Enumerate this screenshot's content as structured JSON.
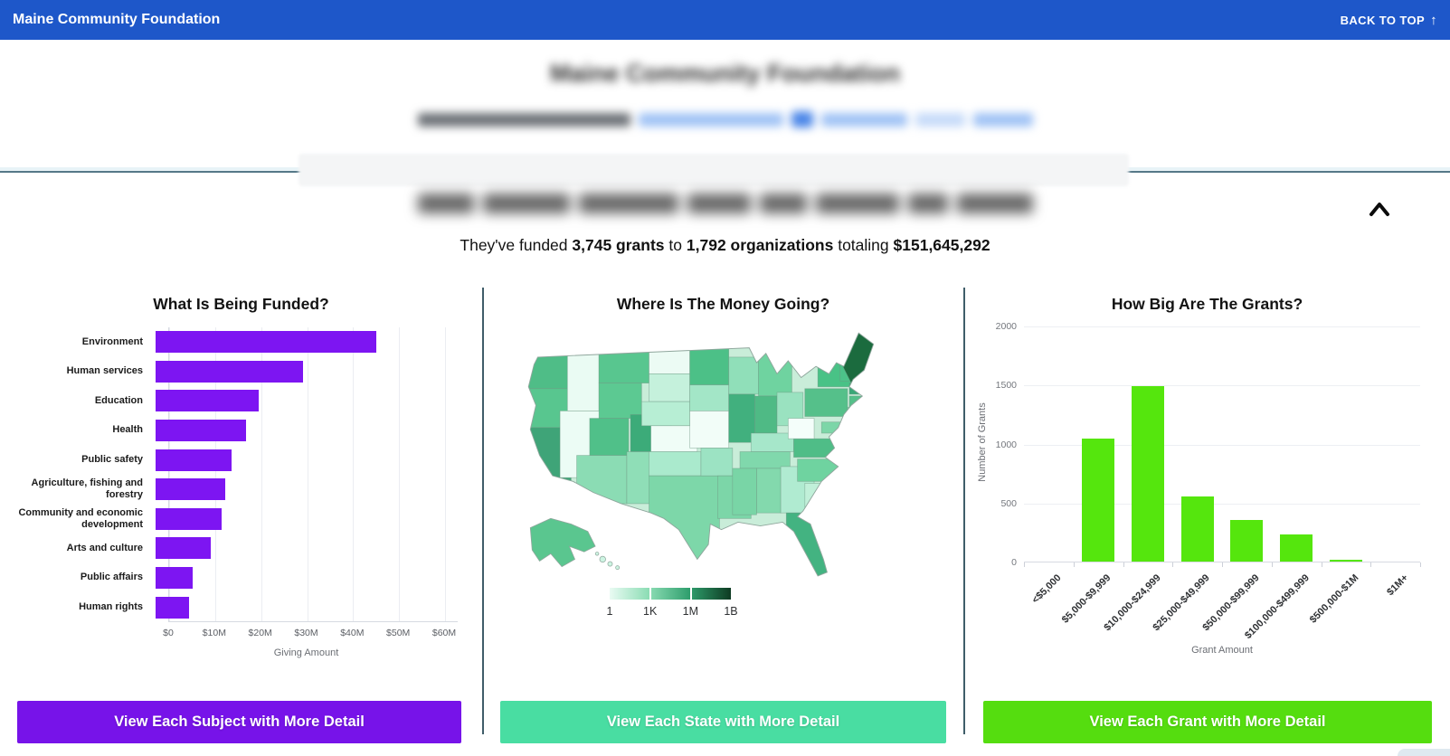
{
  "topbar": {
    "brand": "Maine Community Foundation",
    "back_to_top": "BACK TO TOP",
    "arrow_glyph": "↑"
  },
  "header": {
    "blurred_title": "Maine Community Foundation"
  },
  "overview": {
    "funded_prefix": "They've funded",
    "grants_count": "3,745 grants",
    "to_word": "to",
    "orgs_count": "1,792 organizations",
    "totaling_word": "totaling",
    "total_amount": "$151,645,292"
  },
  "panels": {
    "subjects": {
      "title": "What Is Being Funded?",
      "button_label": "View Each Subject with More Detail"
    },
    "map": {
      "title": "Where Is The Money Going?",
      "button_label": "View Each State with More Detail"
    },
    "grants": {
      "title": "How Big Are The Grants?",
      "button_label": "View Each Grant with More Detail"
    }
  },
  "colors": {
    "topbar_bg": "#1e57c9",
    "purple_bar": "#7d15f2",
    "purple_button": "#7713e9",
    "mint_button": "#49dda2",
    "lime_bar": "#55e60d",
    "lime_button": "#55dd0f",
    "divider": "#3f5d69"
  },
  "chart_data": [
    {
      "type": "bar",
      "orientation": "horizontal",
      "title": "What Is Being Funded?",
      "categories": [
        "Environment",
        "Human services",
        "Education",
        "Health",
        "Public safety",
        "Agriculture, fishing and forestry",
        "Community and economic development",
        "Arts and culture",
        "Public affairs",
        "Human rights"
      ],
      "values_millions_usd": [
        48,
        32,
        22.5,
        19.7,
        16.5,
        15.2,
        14.4,
        12,
        8,
        7.2
      ],
      "xlabel": "Giving Amount",
      "xticks": [
        "$0",
        "$10M",
        "$20M",
        "$30M",
        "$40M",
        "$50M",
        "$60M"
      ],
      "xtick_values_millions": [
        0,
        10,
        20,
        30,
        40,
        50,
        60
      ],
      "xlim_millions": [
        0,
        63
      ],
      "grid": true,
      "bar_color": "#7d15f2"
    },
    {
      "type": "heatmap",
      "subtype": "us-choropleth",
      "title": "Where Is The Money Going?",
      "region": "United States",
      "highest_state": "Maine",
      "legend": {
        "labels": [
          "1",
          "1K",
          "1M",
          "1B"
        ],
        "scale": "logarithmic",
        "gradient_colors": [
          "#e9fbf3",
          "#8adcb3",
          "#2f9e6d",
          "#0e3b22"
        ],
        "position": "bottom"
      },
      "state_colors": {
        "WA": "#4fbd87",
        "OR": "#58c68f",
        "CA": "#3fa478",
        "ID": "#eafbf3",
        "NV": "#ecfcf5",
        "MT": "#58c68f",
        "WY": "#5cc992",
        "UT": "#50c089",
        "AZ": "#8bdcb4",
        "CO": "#3cab79",
        "NM": "#8fdeb7",
        "ND": "#ecfbf4",
        "SD": "#c5f1dc",
        "NE": "#b7eed4",
        "KS": "#f0fdf7",
        "OK": "#aaeacd",
        "TX": "#7dd7a9",
        "MN": "#4cc087",
        "IA": "#a3e6c7",
        "MO": "#f2fdf8",
        "AR": "#9ce3c3",
        "LA": "#7cd6a8",
        "WI": "#90dfb9",
        "IL": "#41b07e",
        "MI": "#6fd3a0",
        "IN": "#4fba85",
        "OH": "#9ae2c0",
        "KY": "#a6e7ca",
        "TN": "#80d8ac",
        "MS": "#79d5a6",
        "AL": "#83d9ad",
        "GA": "#b0ebd1",
        "FL": "#43b381",
        "SC": "#c1f0d9",
        "NC": "#6fd3a0",
        "VA": "#4fbd87",
        "WV": "#f4fefa",
        "PA": "#55c08a",
        "NY": "#49c286",
        "MD": "#7cd6a8",
        "DE": "#9ae2c0",
        "NJ": "#86daae",
        "VT": "#4cc389",
        "NH": "#49ba84",
        "MA": "#3aa877",
        "CT": "#55c08a",
        "RI": "#a3e6c7",
        "ME": "#1b6b3e",
        "AK": "#5ac68f",
        "HI": "#cdf4e2"
      }
    },
    {
      "type": "bar",
      "orientation": "vertical",
      "title": "How Big Are The Grants?",
      "categories": [
        "<$5,000",
        "$5,000-$9,999",
        "$10,000-$24,999",
        "$25,000-$49,999",
        "$50,000-$99,999",
        "$100,000-$499,999",
        "$500,000-$1M",
        "$1M+"
      ],
      "values": [
        0,
        1040,
        1490,
        555,
        350,
        230,
        10,
        0
      ],
      "xlabel": "Grant Amount",
      "ylabel": "Number of Grants",
      "yticks": [
        0,
        500,
        1000,
        1500,
        2000
      ],
      "ylim": [
        0,
        2000
      ],
      "grid": true,
      "bar_color": "#55e60d"
    }
  ]
}
